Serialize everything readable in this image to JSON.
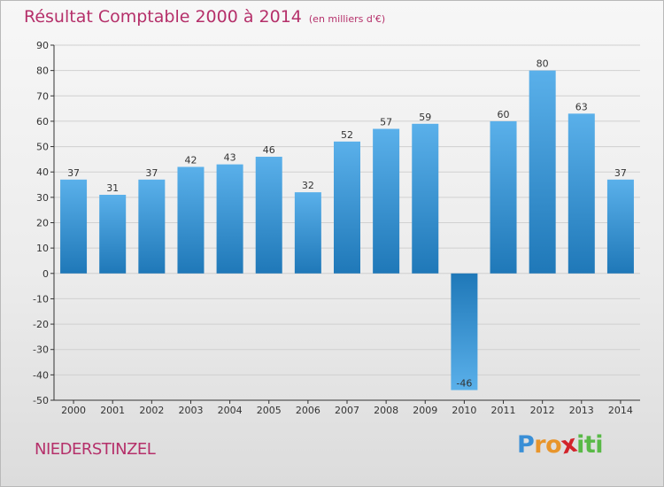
{
  "title": "Résultat Comptable 2000 à 2014",
  "subtitle": "(en milliers d'€)",
  "commune": "NIEDERSTINZEL",
  "logo": {
    "letters": [
      "P",
      "r",
      "o",
      "x",
      "i",
      "t",
      "i"
    ],
    "colors": [
      "#3a8fd6",
      "#e8952b",
      "#e8952b",
      "#d2232a",
      "#59b947",
      "#59b947",
      "#59b947"
    ]
  },
  "colors": {
    "bar_light": "#5ab0ea",
    "bar_dark": "#1f78b8",
    "grid": "#d0d0d0",
    "axis": "#333333",
    "title": "#b5306a"
  },
  "chart_data": {
    "type": "bar",
    "title": "Résultat Comptable 2000 à 2014",
    "subtitle": "(en milliers d'€)",
    "xlabel": "",
    "ylabel": "",
    "categories": [
      "2000",
      "2001",
      "2002",
      "2003",
      "2004",
      "2005",
      "2006",
      "2007",
      "2008",
      "2009",
      "2010",
      "2011",
      "2012",
      "2013",
      "2014"
    ],
    "values": [
      37,
      31,
      37,
      42,
      43,
      46,
      32,
      52,
      57,
      59,
      -46,
      60,
      80,
      63,
      37
    ],
    "ylim": [
      -50,
      90
    ],
    "yticks": [
      90,
      80,
      70,
      60,
      50,
      40,
      30,
      20,
      10,
      0,
      -10,
      -20,
      -30,
      -40,
      -50
    ],
    "grid": true
  }
}
